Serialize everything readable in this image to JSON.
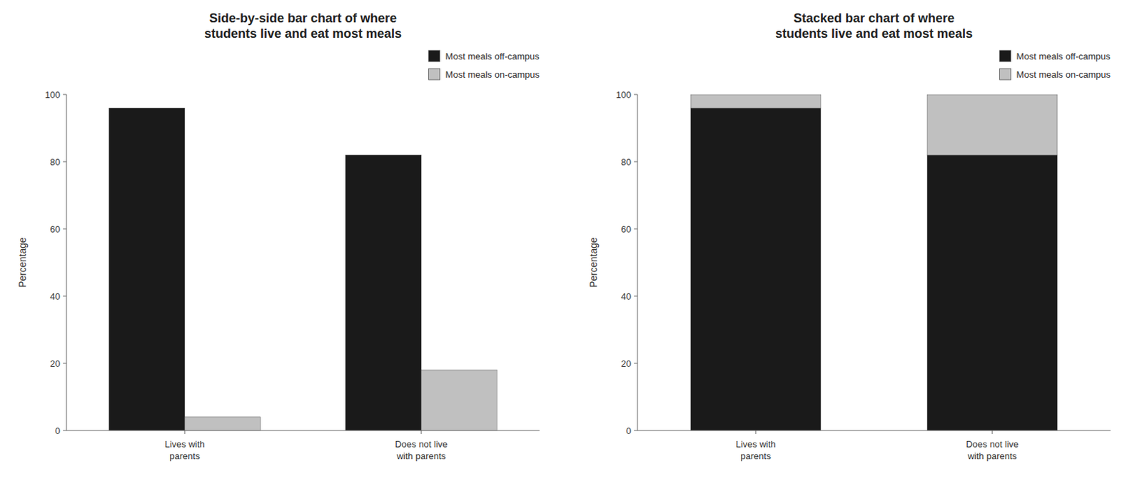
{
  "chart_data": [
    {
      "type": "bar",
      "title": "Side-by-side bar chart of where\nstudents live and eat most meals",
      "y_label": "Percentage",
      "categories": [
        "Lives with\nparents",
        "Does not live\nwith parents"
      ],
      "series": [
        {
          "name": "Most meals off-campus",
          "color": "#1a1a1a",
          "values": [
            96,
            82
          ]
        },
        {
          "name": "Most meals on-campus",
          "color": "#c0c0c0",
          "values": [
            4,
            18
          ]
        }
      ],
      "ylim": [
        0,
        100
      ],
      "yticks": [
        0,
        20,
        40,
        60,
        80,
        100
      ],
      "grid": false,
      "legend": "upper right",
      "stacked": false
    },
    {
      "type": "bar",
      "title": "Stacked bar chart of where\nstudents live and eat most meals",
      "y_label": "Percentage",
      "categories": [
        "Lives with\nparents",
        "Does not live\nwith parents"
      ],
      "series": [
        {
          "name": "Most meals off-campus",
          "color": "#1a1a1a",
          "values": [
            96,
            82
          ]
        },
        {
          "name": "Most meals on-campus",
          "color": "#c0c0c0",
          "values": [
            4,
            18
          ]
        }
      ],
      "ylim": [
        0,
        100
      ],
      "yticks": [
        0,
        20,
        40,
        60,
        80,
        100
      ],
      "grid": false,
      "legend": "upper right",
      "stacked": true
    }
  ]
}
